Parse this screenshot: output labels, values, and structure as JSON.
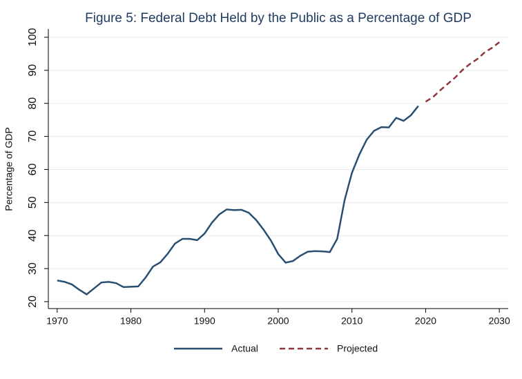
{
  "chart_data": {
    "type": "line",
    "title": "Figure 5: Federal Debt Held by the Public as a Percentage of GDP",
    "y_label": "Percentage of GDP",
    "x": [
      1970,
      1971,
      1972,
      1973,
      1974,
      1975,
      1976,
      1977,
      1978,
      1979,
      1980,
      1981,
      1982,
      1983,
      1984,
      1985,
      1986,
      1987,
      1988,
      1989,
      1990,
      1991,
      1992,
      1993,
      1994,
      1995,
      1996,
      1997,
      1998,
      1999,
      2000,
      2001,
      2002,
      2003,
      2004,
      2005,
      2006,
      2007,
      2008,
      2009,
      2010,
      2011,
      2012,
      2013,
      2014,
      2015,
      2016,
      2017,
      2018,
      2019,
      2020,
      2021,
      2022,
      2023,
      2024,
      2025,
      2026,
      2027,
      2028,
      2029,
      2030
    ],
    "series": [
      {
        "name": "Actual",
        "color": "#284e72",
        "style": "solid",
        "values": [
          26.4,
          26.0,
          25.2,
          23.6,
          22.2,
          24.0,
          25.8,
          26.0,
          25.6,
          24.4,
          24.5,
          24.6,
          27.3,
          30.6,
          31.9,
          34.5,
          37.6,
          39.0,
          39.0,
          38.6,
          40.6,
          43.9,
          46.4,
          47.9,
          47.7,
          47.8,
          46.9,
          44.7,
          41.8,
          38.5,
          34.4,
          31.8,
          32.3,
          33.9,
          35.1,
          35.3,
          35.2,
          35.0,
          39.0,
          50.7,
          59.0,
          64.5,
          69.0,
          71.7,
          72.8,
          72.7,
          75.6,
          74.7,
          76.4,
          79.2,
          null,
          null,
          null,
          null,
          null,
          null,
          null,
          null,
          null,
          null,
          null
        ]
      },
      {
        "name": "Projected",
        "color": "#90353b",
        "style": "dashed",
        "values": [
          null,
          null,
          null,
          null,
          null,
          null,
          null,
          null,
          null,
          null,
          null,
          null,
          null,
          null,
          null,
          null,
          null,
          null,
          null,
          null,
          null,
          null,
          null,
          null,
          null,
          null,
          null,
          null,
          null,
          null,
          null,
          null,
          null,
          null,
          null,
          null,
          null,
          null,
          null,
          null,
          null,
          null,
          null,
          null,
          null,
          null,
          null,
          null,
          null,
          null,
          80.5,
          81.9,
          84.0,
          85.9,
          87.8,
          90.1,
          91.9,
          93.4,
          95.4,
          96.8,
          98.5
        ]
      }
    ],
    "xlim": [
      1968.8,
      2031.2
    ],
    "xticks": [
      1970,
      1980,
      1990,
      2000,
      2010,
      2020,
      2030
    ],
    "ylim": [
      17.9,
      102.5
    ],
    "yticks": [
      20,
      30,
      40,
      50,
      60,
      70,
      80,
      90,
      100
    ],
    "grid": true,
    "legend": "bottom"
  }
}
